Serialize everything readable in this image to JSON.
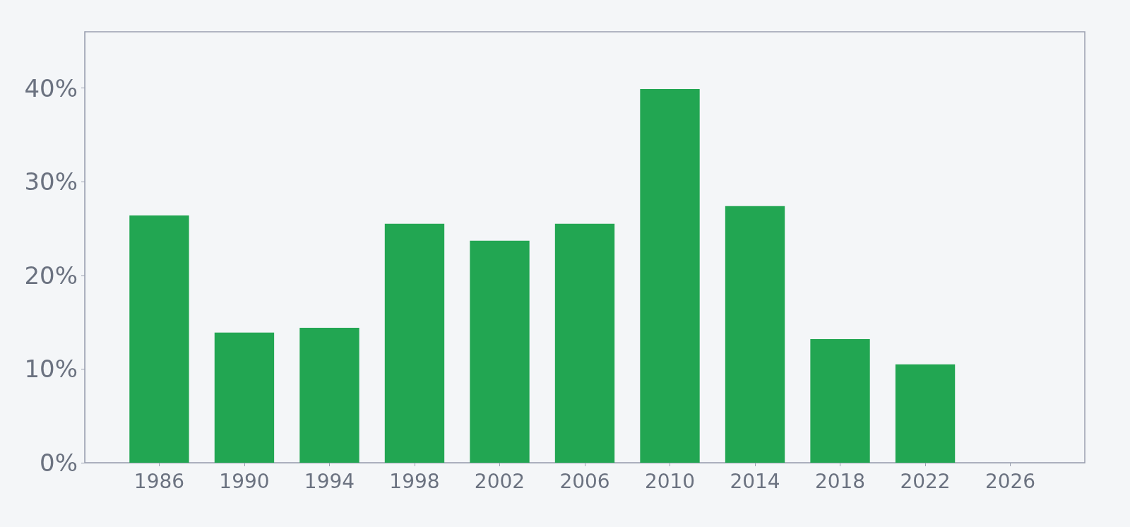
{
  "chart_data": {
    "type": "bar",
    "x": [
      1986,
      1990,
      1994,
      1998,
      2002,
      2006,
      2010,
      2014,
      2018,
      2022
    ],
    "values": [
      26.4,
      13.9,
      14.4,
      25.5,
      23.7,
      25.5,
      39.9,
      27.4,
      13.2,
      10.5
    ],
    "color": "#22a652",
    "xlim": [
      1982.5,
      2029.5
    ],
    "xticks": [
      1986,
      1990,
      1994,
      1998,
      2002,
      2006,
      2010,
      2014,
      2018,
      2022,
      2026
    ],
    "ylim": [
      0,
      46
    ],
    "yticks": [
      {
        "value": 0,
        "label": "0%"
      },
      {
        "value": 10,
        "label": "10%"
      },
      {
        "value": 20,
        "label": "20%"
      },
      {
        "value": 30,
        "label": "30%"
      },
      {
        "value": 40,
        "label": "40%"
      }
    ],
    "grid": false
  }
}
